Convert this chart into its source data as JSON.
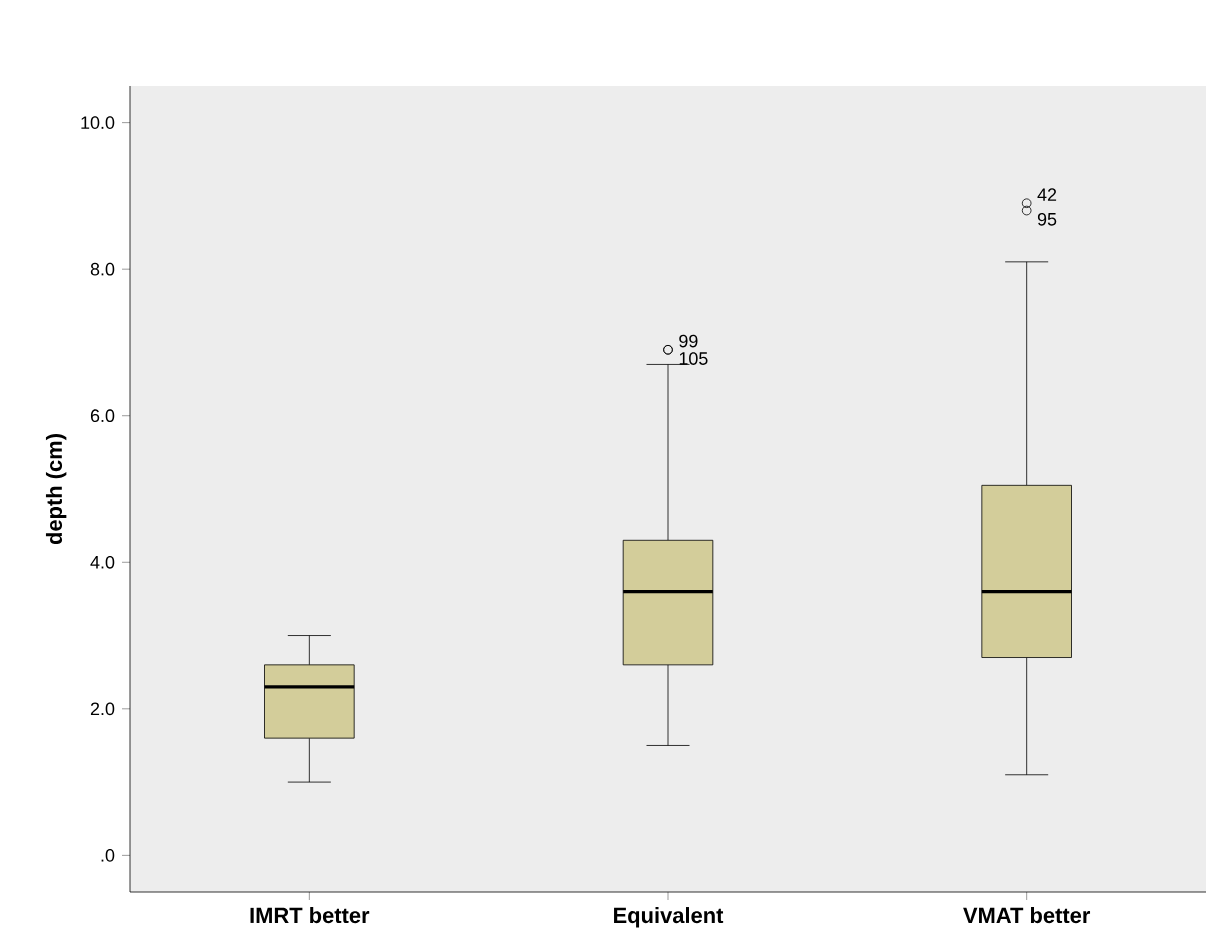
{
  "chart_data": {
    "type": "box",
    "ylabel": "depth (cm)",
    "categories": [
      "IMRT better",
      "Equivalent",
      "VMAT better"
    ],
    "series": [
      {
        "color": "#d3cd9a",
        "boxes": [
          {
            "low": 1.0,
            "q1": 1.6,
            "median": 2.3,
            "q3": 2.6,
            "high": 3.0
          },
          {
            "low": 1.5,
            "q1": 2.6,
            "median": 3.6,
            "q3": 4.3,
            "high": 6.7,
            "outliers": [
              6.9,
              6.9
            ]
          },
          {
            "low": 1.1,
            "q1": 2.7,
            "median": 3.6,
            "q3": 5.05,
            "high": 8.1,
            "outliers": [
              8.9,
              8.8
            ]
          }
        ]
      }
    ],
    "ylim": [
      -0.5,
      10.5
    ],
    "yticks": [
      {
        "value": 0,
        "label": ".0"
      },
      {
        "value": 2,
        "label": "2.0"
      },
      {
        "value": 4,
        "label": "4.0"
      },
      {
        "value": 6,
        "label": "6.0"
      },
      {
        "value": 8,
        "label": "8.0"
      },
      {
        "value": 10,
        "label": "10.0"
      }
    ],
    "annotations": [
      "99",
      "105",
      "42",
      "95"
    ]
  }
}
